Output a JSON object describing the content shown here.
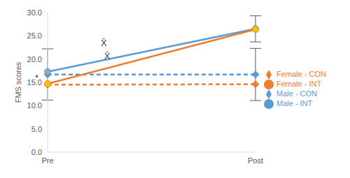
{
  "chart_data": {
    "type": "line",
    "categories": [
      "Pre",
      "Post"
    ],
    "y_label": "FMS scores",
    "ylim": [
      0,
      30
    ],
    "yticks": [
      {
        "value": 0,
        "label": "0.0"
      },
      {
        "value": 5,
        "label": "5.0"
      },
      {
        "value": 10,
        "label": "10.0"
      },
      {
        "value": 15,
        "label": "15.0"
      },
      {
        "value": 20,
        "label": "20.0"
      },
      {
        "value": 25,
        "label": "25.0"
      },
      {
        "value": 30,
        "label": "30.0"
      }
    ],
    "legend": "right",
    "grid": false,
    "series": [
      {
        "name": "Male - CON",
        "color": "#5B9BD5",
        "line_style": "dashed",
        "marker": "diamond",
        "values": [
          16.7,
          16.7
        ],
        "error": [
          5.5,
          5.6
        ]
      },
      {
        "name": "Female - CON",
        "color": "#ED7D31",
        "line_style": "dashed",
        "marker": "diamond",
        "values": [
          14.5,
          14.6
        ]
      },
      {
        "name": "Male - INT",
        "color": "#5B9BD5",
        "line_style": "solid",
        "marker": "circle",
        "values": [
          17.3,
          26.5
        ],
        "error": [
          null,
          2.8
        ]
      },
      {
        "name": "Female - INT",
        "color": "#ED7D31",
        "line_style": "solid",
        "marker": "circle",
        "values": [
          14.7,
          26.4
        ]
      }
    ],
    "annotations": [
      {
        "text": "*",
        "x": -0.1,
        "y": 15.8
      },
      {
        "text": "X̄",
        "x": 0.52,
        "y": 23.3
      },
      {
        "text": "X̄",
        "x": 0.55,
        "y": 20.5
      }
    ]
  }
}
